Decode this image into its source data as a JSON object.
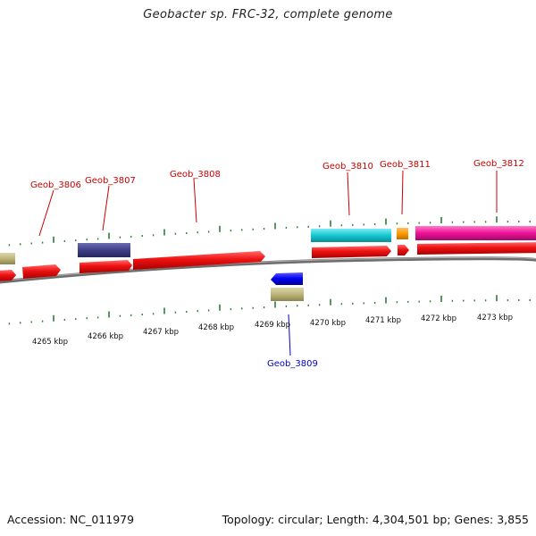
{
  "title": "Geobacter sp. FRC-32, complete genome",
  "footer": {
    "accession": "Accession: NC_011979",
    "summary": "Topology: circular; Length: 4,304,501 bp; Genes: 3,855"
  },
  "scale_labels": [
    "4265 kbp",
    "4266 kbp",
    "4267 kbp",
    "4268 kbp",
    "4269 kbp",
    "4270 kbp",
    "4271 kbp",
    "4272 kbp",
    "4273 kbp"
  ],
  "gene_labels": [
    {
      "name": "Geob_3806",
      "color": "#cc0000"
    },
    {
      "name": "Geob_3807",
      "color": "#cc0000"
    },
    {
      "name": "Geob_3808",
      "color": "#cc0000"
    },
    {
      "name": "Geob_3809",
      "color": "#0000cc"
    },
    {
      "name": "Geob_3810",
      "color": "#cc0000"
    },
    {
      "name": "Geob_3811",
      "color": "#cc0000"
    },
    {
      "name": "Geob_3812",
      "color": "#cc0000"
    }
  ],
  "colors": {
    "gene_red": "#ee1111",
    "backbone": "#808080",
    "ticks": "#2e7d32",
    "cyan": "#14c8d2",
    "orange": "#ff9900",
    "magenta": "#ee1199",
    "purple": "#3f3f88",
    "khaki": "#bdb57a",
    "blue": "#0000ee"
  }
}
